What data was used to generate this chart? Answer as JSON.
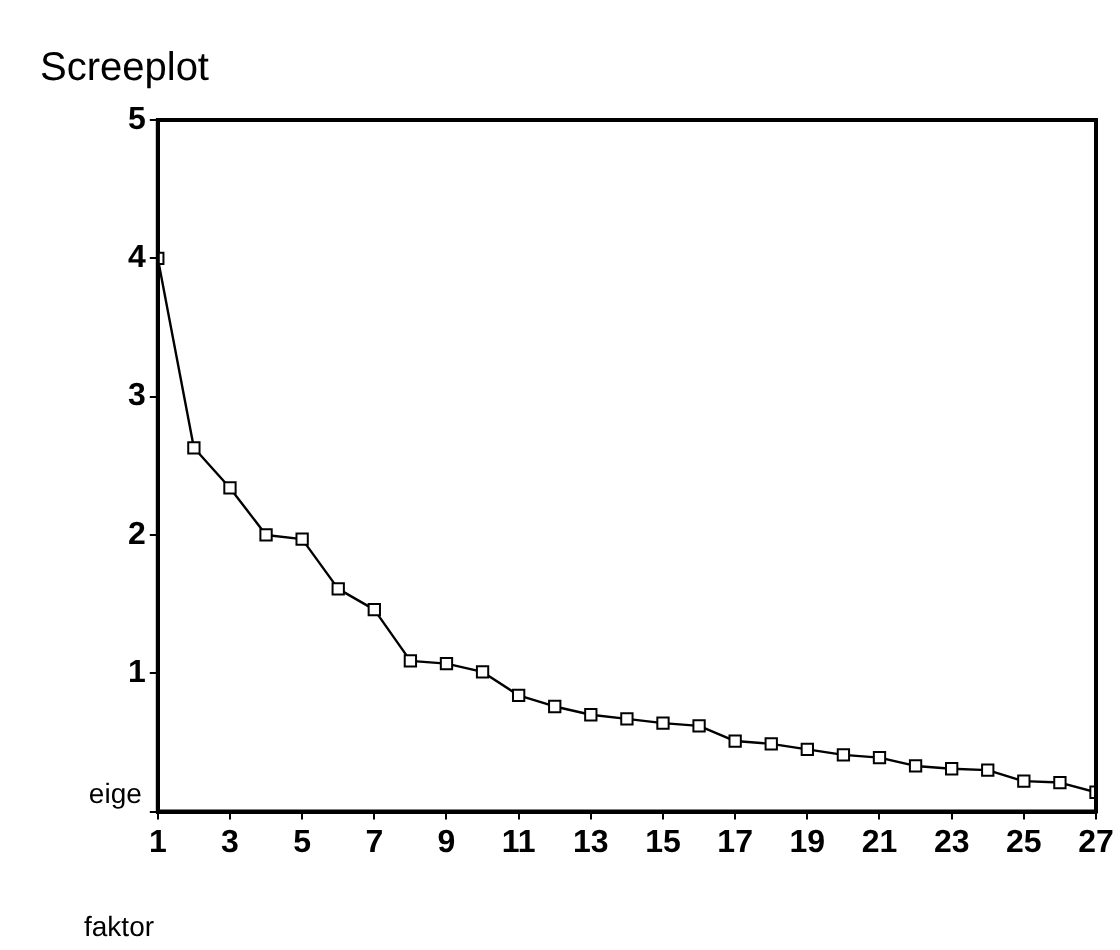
{
  "chart_data": {
    "type": "line",
    "title": "Screeplot",
    "xlabel": "faktor",
    "ylabel": "eige",
    "x": [
      1,
      2,
      3,
      4,
      5,
      6,
      7,
      8,
      9,
      10,
      11,
      12,
      13,
      14,
      15,
      16,
      17,
      18,
      19,
      20,
      21,
      22,
      23,
      24,
      25,
      26,
      27
    ],
    "series": [
      {
        "color": "#000000",
        "values": [
          4.0,
          2.63,
          2.34,
          2.0,
          1.97,
          1.61,
          1.46,
          1.09,
          1.07,
          1.01,
          0.84,
          0.76,
          0.7,
          0.67,
          0.64,
          0.62,
          0.51,
          0.49,
          0.45,
          0.41,
          0.39,
          0.33,
          0.31,
          0.3,
          0.22,
          0.21,
          0.14
        ]
      }
    ],
    "xlim": [
      1,
      27
    ],
    "xticks": [
      1,
      3,
      5,
      7,
      9,
      11,
      13,
      15,
      17,
      19,
      21,
      23,
      25,
      27
    ],
    "ylim": [
      0,
      5
    ],
    "yticks": [
      {
        "value": 0,
        "label": null
      },
      1,
      2,
      3,
      4,
      5
    ],
    "grid": false,
    "legend": false,
    "marker": "square",
    "line_style": "solid"
  }
}
